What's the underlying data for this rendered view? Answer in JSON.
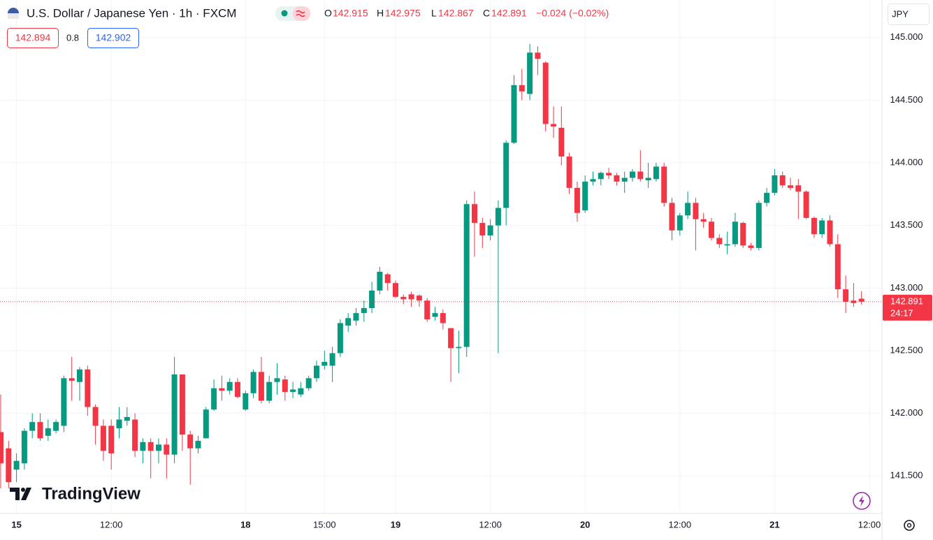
{
  "header": {
    "symbol_title": "U.S. Dollar / Japanese Yen · 1h · FXCM",
    "ohlc_labels": [
      "O",
      "H",
      "L",
      "C"
    ],
    "change": "−0.024 (−0.02%)",
    "bid": 142.894,
    "spread": 0.8,
    "ask": 142.902,
    "currency": "JPY",
    "countdown": "24:17",
    "watermark": "TradingView"
  },
  "chart_data": {
    "type": "candlestick",
    "up_color": "#089981",
    "down_color": "#f23645",
    "grid": true,
    "categories": [
      null,
      null,
      "15",
      null,
      null,
      null,
      null,
      null,
      null,
      null,
      null,
      null,
      null,
      null,
      "12:00",
      null,
      null,
      null,
      null,
      null,
      null,
      null,
      null,
      null,
      null,
      null,
      null,
      null,
      null,
      null,
      null,
      "18",
      null,
      null,
      null,
      null,
      null,
      null,
      null,
      null,
      null,
      "15:00",
      null,
      null,
      null,
      null,
      null,
      null,
      null,
      null,
      "19",
      null,
      null,
      null,
      null,
      null,
      null,
      null,
      null,
      null,
      null,
      null,
      "12:00",
      null,
      null,
      null,
      null,
      null,
      null,
      null,
      null,
      null,
      null,
      null,
      "20",
      null,
      null,
      null,
      null,
      null,
      null,
      null,
      null,
      null,
      null,
      null,
      "12:00",
      null,
      null,
      null,
      null,
      null,
      null,
      null,
      null,
      null,
      null,
      null,
      "21",
      null,
      null,
      null,
      null,
      null,
      null,
      null,
      null,
      null,
      null,
      null,
      "12:00"
    ],
    "open": [
      141.85,
      141.72,
      141.55,
      141.6,
      141.86,
      141.93,
      141.82,
      141.86,
      141.9,
      142.28,
      142.25,
      142.35,
      142.05,
      141.9,
      141.9,
      141.88,
      141.94,
      141.95,
      141.7,
      141.77,
      141.7,
      141.75,
      141.67,
      142.31,
      141.83,
      141.72,
      141.8,
      142.03,
      142.2,
      142.18,
      142.25,
      142.03,
      142.16,
      142.33,
      142.1,
      142.25,
      142.27,
      142.17,
      142.15,
      142.2,
      142.28,
      142.38,
      142.38,
      142.48,
      142.7,
      142.74,
      142.8,
      142.84,
      142.98,
      143.11,
      143.04,
      142.93,
      142.95,
      142.94,
      142.9,
      142.77,
      142.8,
      142.68,
      142.52,
      142.53,
      143.67,
      143.52,
      143.42,
      143.5,
      143.64,
      144.16,
      144.62,
      144.55,
      144.88,
      144.8,
      144.31,
      144.28,
      144.05,
      143.8,
      143.62,
      143.85,
      143.87,
      143.92,
      143.9,
      143.85,
      143.88,
      143.93,
      143.86,
      143.87,
      143.97,
      143.68,
      143.46,
      143.58,
      143.68,
      143.55,
      143.53,
      143.4,
      143.34,
      143.35,
      143.52,
      143.34,
      143.32,
      143.68,
      143.76,
      143.9,
      143.82,
      143.82,
      143.77,
      143.56,
      143.43,
      143.54,
      143.35,
      142.99,
      142.9,
      142.915,
      null
    ],
    "high": [
      142.15,
      141.78,
      141.68,
      141.88,
      142.0,
      142.0,
      141.95,
      141.95,
      142.3,
      142.45,
      142.37,
      142.38,
      142.07,
      141.95,
      141.95,
      142.05,
      142.05,
      142.0,
      141.8,
      141.8,
      141.8,
      141.8,
      142.45,
      142.31,
      141.86,
      141.82,
      142.05,
      142.27,
      142.3,
      142.28,
      142.28,
      142.18,
      142.35,
      142.45,
      142.3,
      142.4,
      142.3,
      142.25,
      142.25,
      142.3,
      142.42,
      142.5,
      142.53,
      142.75,
      142.8,
      142.84,
      142.9,
      143.05,
      143.17,
      143.12,
      143.06,
      142.95,
      142.97,
      142.95,
      142.92,
      142.85,
      142.83,
      142.68,
      142.66,
      143.7,
      143.77,
      143.56,
      143.55,
      143.7,
      144.18,
      144.7,
      144.75,
      144.95,
      144.93,
      144.81,
      144.45,
      144.45,
      144.08,
      143.85,
      143.9,
      143.93,
      143.93,
      143.96,
      143.92,
      143.93,
      143.95,
      144.1,
      144.0,
      144.0,
      144.0,
      143.72,
      143.6,
      143.77,
      143.72,
      143.6,
      143.56,
      143.43,
      143.45,
      143.6,
      143.53,
      143.36,
      143.7,
      143.8,
      143.95,
      143.93,
      143.88,
      143.87,
      143.78,
      143.57,
      143.56,
      143.58,
      143.43,
      143.1,
      143.04,
      142.975,
      null
    ],
    "low": [
      141.4,
      141.4,
      141.45,
      141.55,
      141.8,
      141.78,
      141.78,
      141.84,
      141.85,
      142.1,
      142.1,
      141.98,
      141.75,
      141.62,
      141.55,
      141.8,
      141.9,
      141.65,
      141.6,
      141.48,
      141.6,
      141.48,
      141.6,
      141.7,
      141.43,
      141.68,
      141.8,
      142.02,
      142.1,
      142.15,
      142.12,
      142.02,
      142.12,
      142.08,
      142.08,
      142.15,
      142.1,
      142.12,
      142.13,
      142.18,
      142.25,
      142.35,
      142.25,
      142.45,
      142.65,
      142.7,
      142.73,
      142.8,
      142.95,
      142.98,
      142.92,
      142.87,
      142.85,
      142.85,
      142.73,
      142.74,
      142.67,
      142.25,
      142.32,
      142.45,
      143.25,
      143.32,
      143.38,
      142.48,
      143.5,
      144.15,
      144.5,
      144.5,
      144.7,
      144.25,
      144.2,
      143.98,
      143.75,
      143.53,
      143.6,
      143.82,
      143.82,
      143.87,
      143.82,
      143.76,
      143.85,
      143.85,
      143.8,
      143.85,
      143.65,
      143.38,
      143.42,
      143.55,
      143.3,
      143.48,
      143.38,
      143.32,
      143.27,
      143.33,
      143.32,
      143.3,
      143.3,
      143.65,
      143.74,
      143.8,
      143.78,
      143.55,
      143.55,
      143.4,
      143.4,
      143.33,
      142.92,
      142.8,
      142.85,
      142.867,
      null
    ],
    "close": [
      141.6,
      141.45,
      141.62,
      141.86,
      141.93,
      141.8,
      141.88,
      141.93,
      142.28,
      142.26,
      142.35,
      142.05,
      141.9,
      141.7,
      141.68,
      141.95,
      141.97,
      141.7,
      141.77,
      141.7,
      141.75,
      141.67,
      142.31,
      141.83,
      141.72,
      141.78,
      142.03,
      142.2,
      142.18,
      142.25,
      142.13,
      142.16,
      142.33,
      142.1,
      142.25,
      142.28,
      142.17,
      142.19,
      142.2,
      142.28,
      142.38,
      142.41,
      142.48,
      142.72,
      142.76,
      142.8,
      142.84,
      142.98,
      143.13,
      143.04,
      142.93,
      142.91,
      142.91,
      142.9,
      142.75,
      142.8,
      142.72,
      142.52,
      142.53,
      143.67,
      143.52,
      143.42,
      143.5,
      143.64,
      144.16,
      144.62,
      144.57,
      144.88,
      144.83,
      144.31,
      144.29,
      144.05,
      143.8,
      143.6,
      143.85,
      143.87,
      143.92,
      143.9,
      143.85,
      143.88,
      143.93,
      143.87,
      143.88,
      143.97,
      143.68,
      143.46,
      143.58,
      143.68,
      143.55,
      143.53,
      143.4,
      143.35,
      143.35,
      143.53,
      143.34,
      143.32,
      143.68,
      143.76,
      143.9,
      143.82,
      143.8,
      143.77,
      143.56,
      143.43,
      143.54,
      143.35,
      142.99,
      142.89,
      142.88,
      142.891,
      null
    ],
    "ylim": [
      141.2,
      145.3
    ],
    "yticks": [
      {
        "value": 141.5,
        "label": "141.500"
      },
      {
        "value": 142,
        "label": "142.000"
      },
      {
        "value": 142.5,
        "label": "142.500"
      },
      {
        "value": 143,
        "label": "143.000"
      },
      {
        "value": 143.5,
        "label": "143.500"
      },
      {
        "value": 144,
        "label": "144.000"
      },
      {
        "value": 144.5,
        "label": "144.500"
      },
      {
        "value": 145,
        "label": "145.000"
      }
    ]
  }
}
